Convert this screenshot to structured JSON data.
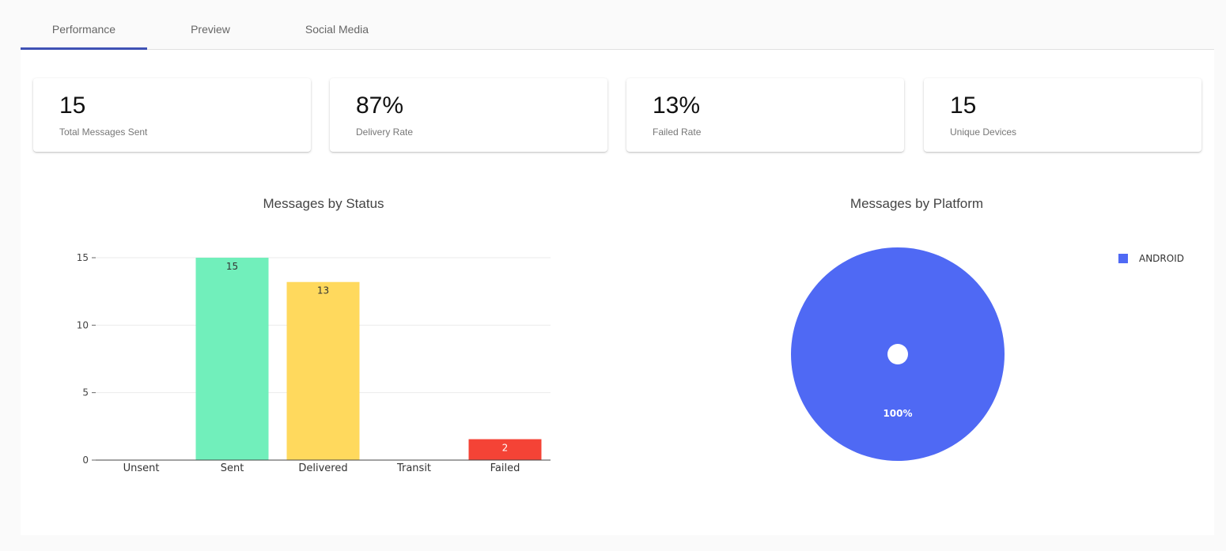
{
  "tabs": [
    {
      "label": "Performance",
      "active": true
    },
    {
      "label": "Preview",
      "active": false
    },
    {
      "label": "Social Media",
      "active": false
    }
  ],
  "stats": [
    {
      "value": "15",
      "label": "Total Messages Sent"
    },
    {
      "value": "87%",
      "label": "Delivery Rate"
    },
    {
      "value": "13%",
      "label": "Failed Rate"
    },
    {
      "value": "15",
      "label": "Unique Devices"
    }
  ],
  "chart_data": [
    {
      "type": "bar",
      "title": "Messages by Status",
      "categories": [
        "Unsent",
        "Sent",
        "Delivered",
        "Transit",
        "Failed"
      ],
      "values": [
        0,
        15,
        13.2,
        0,
        1.55
      ],
      "data_labels": [
        "",
        "15",
        "13",
        "",
        "2"
      ],
      "colors": [
        "#cccccc",
        "#71efbb",
        "#ffd95d",
        "#cccccc",
        "#f44336"
      ],
      "label_colors": [
        "#333333",
        "#333333",
        "#333333",
        "#333333",
        "#ffffff"
      ],
      "yticks": [
        0,
        5,
        10,
        15
      ],
      "ylim": [
        0,
        15
      ],
      "grid": true
    },
    {
      "type": "pie",
      "title": "Messages by Platform",
      "labels": [
        "ANDROID"
      ],
      "values": [
        100
      ],
      "data_labels": [
        "100%"
      ],
      "colors": [
        "#4f69f4"
      ],
      "legend_position": "top-right"
    }
  ]
}
